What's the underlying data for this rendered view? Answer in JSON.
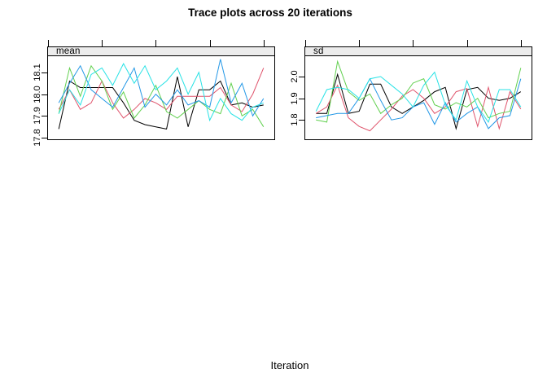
{
  "title": "Trace plots across 20 iterations",
  "xlabel": "Iteration",
  "palette": {
    "black": "#000000",
    "red": "#DF536B",
    "green": "#61D04F",
    "blue": "#2297E6",
    "cyan": "#28E2E5",
    "strip_background": "#ECECEC",
    "panel_border": "#000000"
  },
  "chart_data": [
    {
      "type": "line",
      "strip_label": "mean",
      "x": [
        1,
        2,
        3,
        4,
        5,
        6,
        7,
        8,
        9,
        10,
        11,
        12,
        13,
        14,
        15,
        16,
        17,
        18,
        19,
        20
      ],
      "xlim": [
        0,
        21
      ],
      "xticks": [
        0,
        5,
        10,
        15,
        20
      ],
      "ylim": [
        17.789,
        18.174
      ],
      "yticks": [
        "17.8",
        "17.9",
        "18.0",
        "18.1"
      ],
      "ytick_values": [
        17.8,
        17.9,
        18.0,
        18.1
      ],
      "grid": false,
      "legend": "none",
      "series": [
        {
          "name": "chain-black",
          "color": "#000000",
          "values": [
            17.84,
            18.06,
            18.03,
            18.03,
            18.03,
            18.03,
            17.96,
            17.88,
            17.86,
            17.85,
            17.84,
            18.08,
            17.85,
            18.02,
            18.02,
            18.06,
            17.95,
            17.96,
            17.94,
            17.95
          ]
        },
        {
          "name": "chain-red",
          "color": "#DF536B",
          "values": [
            17.93,
            18.02,
            17.93,
            17.96,
            18.06,
            17.96,
            17.89,
            17.93,
            17.98,
            17.96,
            17.93,
            17.99,
            17.99,
            17.99,
            17.99,
            18.03,
            17.95,
            17.92,
            18.0,
            18.12
          ]
        },
        {
          "name": "chain-green",
          "color": "#61D04F",
          "values": [
            17.91,
            18.12,
            17.99,
            18.13,
            18.06,
            17.93,
            18.01,
            17.89,
            17.95,
            18.04,
            17.92,
            17.89,
            17.93,
            17.97,
            17.93,
            17.91,
            18.05,
            17.9,
            17.93,
            17.85
          ]
        },
        {
          "name": "chain-blue",
          "color": "#2297E6",
          "values": [
            17.96,
            18.05,
            18.13,
            18.02,
            17.98,
            17.94,
            18.03,
            18.12,
            17.94,
            18.0,
            17.95,
            18.02,
            17.95,
            17.97,
            17.94,
            18.16,
            17.96,
            18.05,
            17.9,
            17.98
          ]
        },
        {
          "name": "chain-cyan",
          "color": "#28E2E5",
          "values": [
            17.91,
            18.02,
            17.95,
            18.09,
            18.12,
            18.04,
            18.14,
            18.05,
            18.13,
            18.02,
            18.06,
            18.12,
            18.0,
            18.1,
            17.88,
            17.98,
            17.91,
            17.88,
            17.94,
            17.96
          ]
        }
      ]
    },
    {
      "type": "line",
      "strip_label": "sd",
      "x": [
        1,
        2,
        3,
        4,
        5,
        6,
        7,
        8,
        9,
        10,
        11,
        12,
        13,
        14,
        15,
        16,
        17,
        18,
        19,
        20
      ],
      "xlim": [
        0,
        21
      ],
      "xticks": [
        0,
        5,
        10,
        15,
        20
      ],
      "ylim": [
        1.707,
        2.094
      ],
      "yticks": [
        "1.8",
        "1.9",
        "2.0"
      ],
      "ytick_values": [
        1.8,
        1.9,
        2.0
      ],
      "grid": false,
      "legend": "none",
      "series": [
        {
          "name": "chain-black",
          "color": "#000000",
          "values": [
            1.83,
            1.83,
            2.01,
            1.83,
            1.84,
            1.965,
            1.965,
            1.86,
            1.83,
            1.86,
            1.89,
            1.93,
            1.95,
            1.76,
            1.94,
            1.95,
            1.9,
            1.89,
            1.9,
            1.93
          ]
        },
        {
          "name": "chain-red",
          "color": "#DF536B",
          "values": [
            1.83,
            1.86,
            1.96,
            1.81,
            1.77,
            1.75,
            1.8,
            1.85,
            1.91,
            1.94,
            1.9,
            1.83,
            1.86,
            1.93,
            1.945,
            1.77,
            1.95,
            1.76,
            1.93,
            1.85
          ]
        },
        {
          "name": "chain-green",
          "color": "#61D04F",
          "values": [
            1.8,
            1.79,
            2.07,
            1.93,
            1.89,
            1.92,
            1.83,
            1.87,
            1.9,
            1.97,
            1.99,
            1.87,
            1.85,
            1.88,
            1.86,
            1.9,
            1.81,
            1.83,
            1.84,
            2.04
          ]
        },
        {
          "name": "chain-blue",
          "color": "#2297E6",
          "values": [
            1.81,
            1.82,
            1.83,
            1.83,
            1.9,
            1.99,
            1.89,
            1.8,
            1.81,
            1.86,
            1.88,
            1.78,
            1.88,
            1.79,
            1.83,
            1.86,
            1.76,
            1.81,
            1.82,
            1.99
          ]
        },
        {
          "name": "chain-cyan",
          "color": "#28E2E5",
          "values": [
            1.84,
            1.94,
            1.95,
            1.94,
            1.9,
            1.99,
            2.0,
            1.96,
            1.92,
            1.86,
            1.96,
            2.02,
            1.87,
            1.8,
            1.98,
            1.86,
            1.79,
            1.94,
            1.94,
            1.86
          ]
        }
      ]
    }
  ]
}
